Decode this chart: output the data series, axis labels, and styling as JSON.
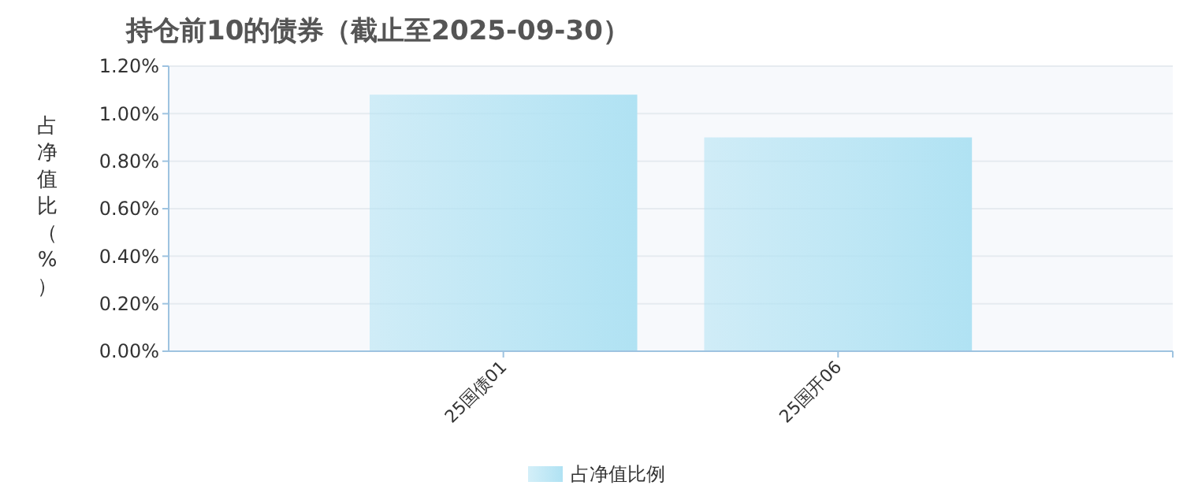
{
  "chart_data": {
    "type": "bar",
    "title": "持仓前10的债券（截止至2025-09-30）",
    "ylabel": "占净值比（%）",
    "categories": [
      "25国债01",
      "25国开06"
    ],
    "series": [
      {
        "name": "占净值比例",
        "color": "#b0e2f3",
        "values": [
          1.08,
          0.9
        ]
      }
    ],
    "ylim": [
      0,
      1.2
    ],
    "yticks": [
      {
        "value": 0,
        "label": "0.00%"
      },
      {
        "value": 0.2,
        "label": "0.20%"
      },
      {
        "value": 0.4,
        "label": "0.40%"
      },
      {
        "value": 0.6,
        "label": "0.60%"
      },
      {
        "value": 0.8,
        "label": "0.80%"
      },
      {
        "value": 1.0,
        "label": "1.00%"
      },
      {
        "value": 1.2,
        "label": "1.20%"
      }
    ],
    "grid": "y",
    "legend": "bottom"
  }
}
